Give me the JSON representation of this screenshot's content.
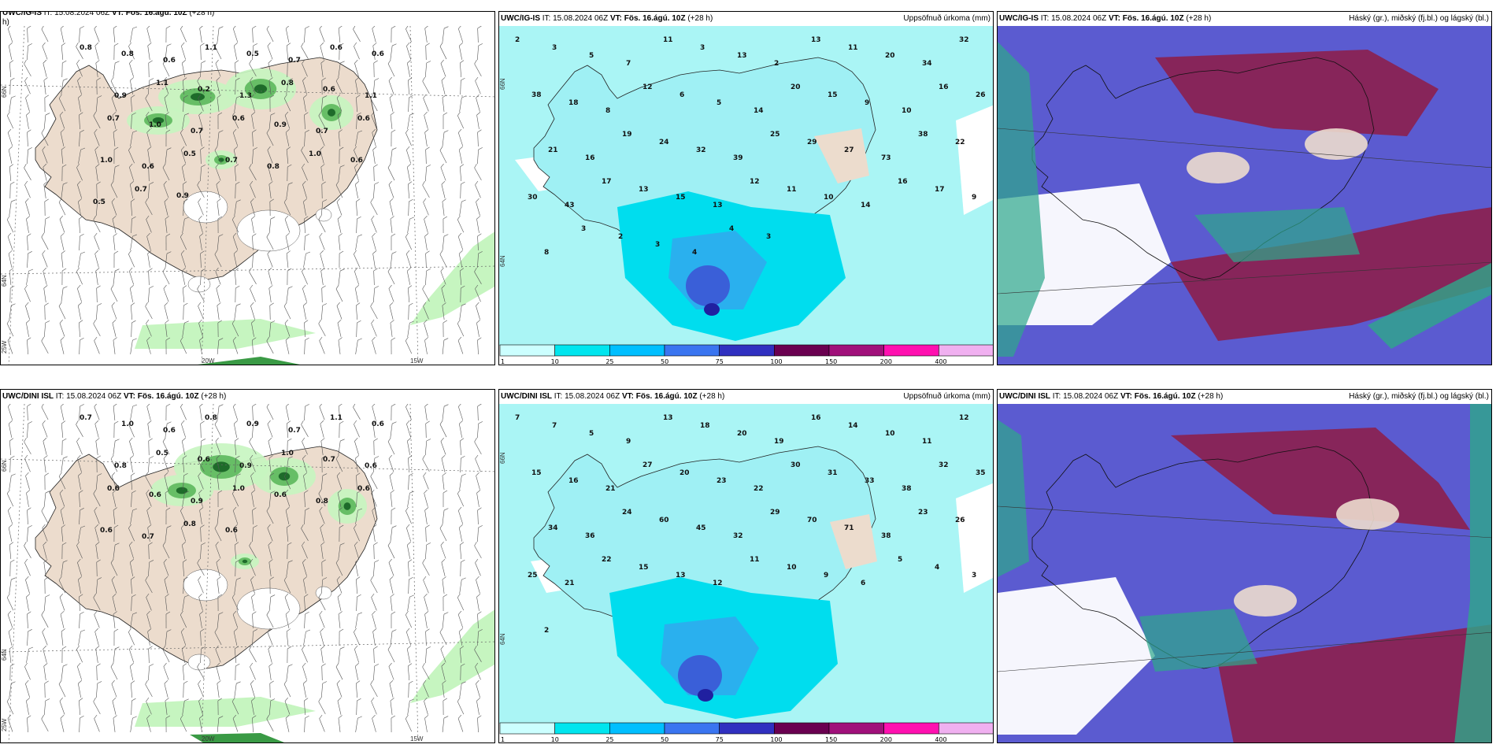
{
  "rows": [
    {
      "model": "UWC/IG-IS",
      "it_label": "IT:",
      "it_value": "15.08.2024 06Z",
      "vt_label": "VT:",
      "vt_value": "Fös. 16.ágú. 10Z",
      "lead": "(+28 h)",
      "wind_title_top": "UWC/IG-IS IT: 15.08.2024 06Z VT: Fös. 16.ágú. 10Z (+28",
      "wind_title_wrap": "h)"
    },
    {
      "model": "UWC/DINI ISL",
      "it_label": "IT:",
      "it_value": "15.08.2024 06Z",
      "vt_label": "VT:",
      "vt_value": "Fös. 16.ágú. 10Z",
      "lead": "(+28 h)"
    }
  ],
  "precip_title": "Uppsöfnuð úrkoma (mm)",
  "cloud_title": "Háský (gr.), miðský (fj.bl.) og lágský (bl.)",
  "colorbar": {
    "ticks": [
      "1",
      "10",
      "25",
      "50",
      "75",
      "100",
      "150",
      "200",
      "400"
    ],
    "colors": [
      "#ccffff",
      "#00e5ee",
      "#00bfff",
      "#3a75f0",
      "#3030c0",
      "#6a0050",
      "#a0107a",
      "#ff10b0",
      "#f0b0f0"
    ]
  },
  "axis_labels": {
    "lat66": "66N",
    "lat64": "64N",
    "lon25": "25W",
    "lon20": "20W",
    "lon15": "15W"
  },
  "colors": {
    "land": "#ecdccd",
    "sea_precip": "#aaf5f5",
    "precip_light": "#00ddee",
    "precip_mid": "#2ab0ee",
    "precip_heavy": "#3a5fd8",
    "cloud_mid": "#5b5bd0",
    "cloud_low": "#8c1f4d",
    "cloud_high": "#2ea88a",
    "green_light": "#c6f5c0",
    "green_dark": "#1e6b2a"
  },
  "wind_precip_values": {
    "top": [
      "0.8",
      "0.8",
      "0.6",
      "1.1",
      "0.5",
      "0.7",
      "0.6",
      "0.6",
      "0.9",
      "1.1",
      "0.2",
      "1.3",
      "0.8",
      "0.6",
      "1.1",
      "0.7",
      "1.0",
      "0.7",
      "0.6",
      "0.9",
      "0.7",
      "0.6",
      "1.0",
      "0.6",
      "0.5",
      "0.7",
      "0.8",
      "1.0",
      "0.6",
      "0.5",
      "0.7",
      "0.9"
    ],
    "bottom": [
      "0.7",
      "1.0",
      "0.6",
      "0.8",
      "0.9",
      "0.7",
      "1.1",
      "0.6",
      "0.8",
      "0.5",
      "0.6",
      "0.9",
      "1.0",
      "0.7",
      "0.6",
      "0.6",
      "0.6",
      "0.9",
      "1.0",
      "0.6",
      "0.8",
      "0.6",
      "0.6",
      "0.7",
      "0.8",
      "0.6"
    ]
  },
  "precip_values": {
    "top": [
      "2",
      "3",
      "5",
      "7",
      "11",
      "3",
      "13",
      "2",
      "13",
      "11",
      "20",
      "34",
      "32",
      "38",
      "18",
      "8",
      "12",
      "6",
      "5",
      "14",
      "20",
      "15",
      "9",
      "10",
      "16",
      "26",
      "21",
      "16",
      "19",
      "24",
      "32",
      "39",
      "25",
      "29",
      "27",
      "73",
      "38",
      "22",
      "30",
      "43",
      "17",
      "13",
      "15",
      "13",
      "12",
      "11",
      "10",
      "14",
      "16",
      "17",
      "9",
      "8",
      "3",
      "2",
      "3",
      "4",
      "4",
      "3"
    ],
    "bottom": [
      "7",
      "7",
      "5",
      "9",
      "13",
      "18",
      "20",
      "19",
      "16",
      "14",
      "10",
      "11",
      "12",
      "15",
      "16",
      "21",
      "27",
      "20",
      "23",
      "22",
      "30",
      "31",
      "33",
      "38",
      "32",
      "35",
      "34",
      "36",
      "24",
      "60",
      "45",
      "32",
      "29",
      "70",
      "71",
      "38",
      "23",
      "26",
      "25",
      "21",
      "22",
      "15",
      "13",
      "12",
      "11",
      "10",
      "9",
      "6",
      "5",
      "4",
      "3",
      "2"
    ]
  }
}
